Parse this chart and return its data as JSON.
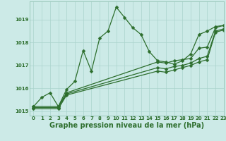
{
  "xlabel": "Graphe pression niveau de la mer (hPa)",
  "xlim": [
    -0.5,
    23
  ],
  "ylim": [
    1014.8,
    1019.8
  ],
  "yticks": [
    1015,
    1016,
    1017,
    1018,
    1019
  ],
  "xticks": [
    0,
    1,
    2,
    3,
    4,
    5,
    6,
    7,
    8,
    9,
    10,
    11,
    12,
    13,
    14,
    15,
    16,
    17,
    18,
    19,
    20,
    21,
    22,
    23
  ],
  "bg_color": "#cceae7",
  "grid_color": "#aad4cc",
  "line_color": "#2d6e2d",
  "series": [
    {
      "x": [
        0,
        1,
        2,
        3,
        4,
        5,
        6,
        7,
        8,
        9,
        10,
        11,
        12,
        13,
        14,
        15,
        16,
        17,
        18,
        19,
        20,
        21,
        22,
        23
      ],
      "y": [
        1015.2,
        1015.6,
        1015.8,
        1015.2,
        1015.95,
        1016.3,
        1017.65,
        1016.75,
        1018.2,
        1018.5,
        1019.55,
        1019.1,
        1018.65,
        1018.35,
        1017.6,
        1017.2,
        1017.15,
        1017.05,
        1017.2,
        1017.5,
        1018.35,
        1018.5,
        1018.7,
        1018.75
      ],
      "marker": "D",
      "marker_size": 2.5,
      "lw": 0.9,
      "dashed": false
    },
    {
      "x": [
        0,
        3,
        4,
        15,
        16,
        17,
        18,
        19,
        20,
        21,
        22,
        23
      ],
      "y": [
        1015.2,
        1015.2,
        1015.8,
        1017.15,
        1017.1,
        1017.2,
        1017.25,
        1017.3,
        1017.75,
        1017.8,
        1018.65,
        1018.75
      ],
      "marker": "D",
      "marker_size": 2.5,
      "lw": 0.9,
      "dashed": false
    },
    {
      "x": [
        0,
        3,
        4,
        15,
        16,
        17,
        18,
        19,
        20,
        21,
        22,
        23
      ],
      "y": [
        1015.15,
        1015.15,
        1015.75,
        1016.9,
        1016.85,
        1016.95,
        1017.0,
        1017.1,
        1017.3,
        1017.4,
        1018.5,
        1018.6
      ],
      "marker": "D",
      "marker_size": 2.5,
      "lw": 0.9,
      "dashed": false
    },
    {
      "x": [
        0,
        3,
        4,
        15,
        16,
        17,
        18,
        19,
        20,
        21,
        22,
        23
      ],
      "y": [
        1015.1,
        1015.1,
        1015.7,
        1016.75,
        1016.7,
        1016.8,
        1016.9,
        1017.0,
        1017.15,
        1017.25,
        1018.45,
        1018.55
      ],
      "marker": "D",
      "marker_size": 2.5,
      "lw": 0.9,
      "dashed": false
    }
  ],
  "font_color": "#2d6e2d",
  "xlabel_fontsize": 7.0,
  "tick_fontsize": 5.0
}
